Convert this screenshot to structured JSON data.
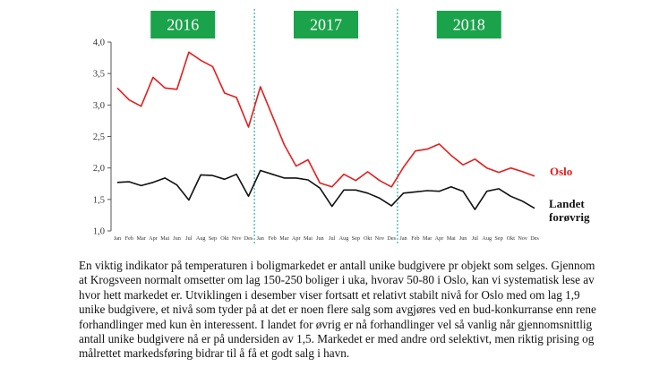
{
  "chart_data": {
    "type": "line",
    "year_labels": [
      "2016",
      "2017",
      "2018"
    ],
    "categories": [
      "Jan",
      "Feb",
      "Mar",
      "Apr",
      "Mai",
      "Jun",
      "Jul",
      "Aug",
      "Sep",
      "Okt",
      "Nov",
      "Des",
      "Jan",
      "Feb",
      "Mar",
      "Apr",
      "Mai",
      "Jun",
      "Jul",
      "Aug",
      "Sep",
      "Okt",
      "Nov",
      "Des",
      "Jan",
      "Feb",
      "Mar",
      "Apr",
      "Mai",
      "Jun",
      "Jul",
      "Aug",
      "Sep",
      "Okt",
      "Nov",
      "Des"
    ],
    "series": [
      {
        "name": "Oslo",
        "color": "#e31e1e",
        "values": [
          3.27,
          3.08,
          2.98,
          3.44,
          3.27,
          3.25,
          3.84,
          3.71,
          3.61,
          3.19,
          3.12,
          2.65,
          3.29,
          2.83,
          2.37,
          2.03,
          2.13,
          1.76,
          1.7,
          1.9,
          1.8,
          1.94,
          1.8,
          1.7,
          2.01,
          2.27,
          2.3,
          2.38,
          2.2,
          2.05,
          2.14,
          2.0,
          1.93,
          2.0,
          1.94,
          1.87
        ]
      },
      {
        "name": "Landet forøvrig",
        "color": "#111111",
        "values": [
          1.77,
          1.78,
          1.72,
          1.77,
          1.84,
          1.73,
          1.49,
          1.89,
          1.88,
          1.82,
          1.9,
          1.55,
          1.96,
          1.9,
          1.84,
          1.84,
          1.81,
          1.68,
          1.39,
          1.65,
          1.65,
          1.6,
          1.52,
          1.4,
          1.6,
          1.62,
          1.64,
          1.63,
          1.7,
          1.63,
          1.34,
          1.63,
          1.67,
          1.55,
          1.47,
          1.36
        ]
      }
    ],
    "y_ticks": [
      "1,0",
      "1,5",
      "2,0",
      "2,5",
      "3,0",
      "3,5",
      "4,0"
    ],
    "ylim": [
      1.0,
      4.0
    ],
    "grid": false,
    "legend": "right, at line ends",
    "year_badge_color": "#1aa34a",
    "divider_color": "#2bb3a0"
  },
  "caption": "En viktig indikator på temperaturen i boligmarkedet er antall unike budgivere pr objekt som selges. Gjennom at Krogsveen normalt omsetter om lag 150-250 boliger i uka, hvorav 50-80 i Oslo, kan vi systematisk lese av hvor hett markedet er. Utviklingen i desember viser fortsatt et relativt stabilt nivå for Oslo med om lag 1,9 unike budgivere, et nivå som tyder på at det er noen flere salg som avgjøres ved en bud-konkurranse enn rene forhandlinger med kun èn interessent. I landet for øvrig er nå forhandlinger vel så vanlig når gjennomsnittlig antall unike budgivere nå er på undersiden av 1,5. Markedet er med andre ord selektivt, men riktig prising og målrettet markedsføring bidrar til å få et godt salg i havn."
}
